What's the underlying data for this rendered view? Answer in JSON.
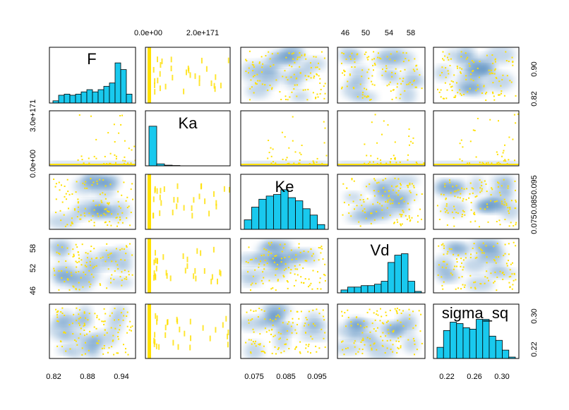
{
  "chart_data": {
    "type": "scatter-matrix",
    "variables": [
      "F",
      "Ka",
      "Ke",
      "Vd",
      "sigma_sq"
    ],
    "off_diagonal": "smoothed density scatter (blue) with sample points (yellow)",
    "colors": {
      "hist_fill": "#19c9ee",
      "hist_stroke": "#000000",
      "point": "#ffe000",
      "density": "#2a6fb0",
      "panel_border": "#000000"
    },
    "axis_ticks": {
      "F_bottom": [
        "0.82",
        "0.88",
        "0.94"
      ],
      "F_right": [
        "0.82",
        "0.90"
      ],
      "Ka_top": [
        "0.0e+00",
        "2.0e+171"
      ],
      "Ka_left": [
        "0.0e+00",
        "3.0e+171"
      ],
      "Ke_bottom": [
        "0.075",
        "0.085",
        "0.095"
      ],
      "Ke_right": [
        "0.075",
        "0.085",
        "0.095"
      ],
      "Vd_top": [
        "46",
        "50",
        "54",
        "58"
      ],
      "Vd_left": [
        "46",
        "52",
        "58"
      ],
      "sigma_sq_bottom": [
        "0.22",
        "0.26",
        "0.30"
      ],
      "sigma_sq_right": [
        "0.22",
        "0.30"
      ]
    },
    "histograms": {
      "F": {
        "range": [
          0.8,
          0.96
        ],
        "counts": [
          2,
          7,
          8,
          7,
          8,
          10,
          12,
          10,
          12,
          15,
          18,
          36,
          30,
          8
        ]
      },
      "Ka": {
        "range": [
          0,
          5e+171
        ],
        "counts": [
          120,
          6,
          2,
          1,
          0,
          0,
          0,
          0,
          0,
          0
        ]
      },
      "Ke": {
        "range": [
          0.071,
          0.099
        ],
        "counts": [
          6,
          14,
          19,
          21,
          22,
          25,
          20,
          18,
          13,
          9,
          3
        ]
      },
      "Vd": {
        "range": [
          44,
          60
        ],
        "counts": [
          2,
          4,
          4,
          5,
          5,
          6,
          8,
          21,
          26,
          27,
          8,
          1
        ]
      },
      "sigma_sq": {
        "range": [
          0.2,
          0.33
        ],
        "counts": [
          8,
          20,
          26,
          25,
          22,
          21,
          28,
          28,
          16,
          13,
          6,
          1
        ]
      }
    }
  }
}
